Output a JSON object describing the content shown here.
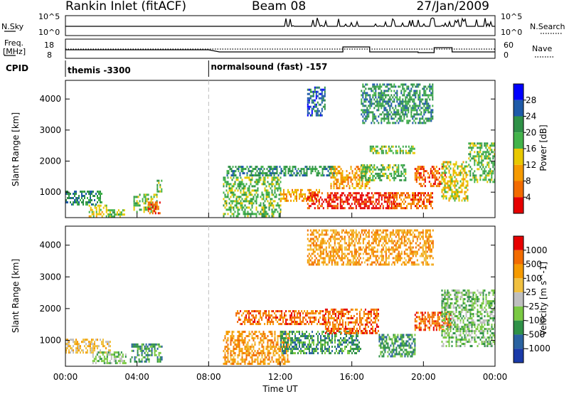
{
  "header": {
    "station": "Rankin Inlet (fitACF)",
    "beam": "Beam 08",
    "date": "27/Jan/2009"
  },
  "summary_panels": {
    "nsky_label": "N.Sky",
    "nsky_ticks": [
      "10^5",
      "10^0"
    ],
    "nsearch_label": "N.Search",
    "nsearch_ticks": [
      "10^5",
      "10^0"
    ],
    "freq_label_1": "Freq.",
    "freq_label_2": "[MHz]",
    "freq_ticks": [
      "18",
      "8"
    ],
    "nave_label": "Nave",
    "nave_ticks": [
      "60",
      "0"
    ],
    "cpid_label": "CPID",
    "cpid_segments": [
      {
        "name": "themis -3300",
        "start_hour": 0,
        "end_hour": 8.0
      },
      {
        "name": "normalsound (fast) -157",
        "start_hour": 8.0,
        "end_hour": 24
      }
    ]
  },
  "time_axis": {
    "label": "Time UT",
    "ticks": [
      "00:00",
      "04:00",
      "08:00",
      "12:00",
      "16:00",
      "20:00",
      "00:00"
    ]
  },
  "power_panel": {
    "ylabel": "Slant Range [km]",
    "yticks": [
      "1000",
      "2000",
      "3000",
      "4000"
    ],
    "colorbar_label": "Power [dB]",
    "colorbar_ticks": [
      "4",
      "8",
      "12",
      "16",
      "20",
      "24",
      "28"
    ],
    "colors": [
      "#0000ff",
      "#1e5aa8",
      "#2f9147",
      "#43b34a",
      "#e8c800",
      "#f59a00",
      "#f26b00",
      "#e60000"
    ]
  },
  "velocity_panel": {
    "ylabel": "Slant Range [km]",
    "yticks": [
      "1000",
      "2000",
      "3000",
      "4000"
    ],
    "colorbar_label": "Velocity [m s^-1]",
    "colorbar_ticks": [
      "1000",
      "500",
      "100",
      "25",
      "-25",
      "-100",
      "-500",
      "-1000"
    ],
    "colors": [
      "#1a3aa8",
      "#2a62a0",
      "#2f9147",
      "#7ac943",
      "#bfbfbf",
      "#f0c040",
      "#f59a00",
      "#f26b00",
      "#e60000"
    ]
  },
  "chart_data": {
    "type": "heatmap",
    "x_range_hours": [
      0,
      24
    ],
    "y_range_km": [
      180,
      4600
    ],
    "power_regions": [
      {
        "t0": 0.0,
        "t1": 2.0,
        "r0": 600,
        "r1": 1050,
        "level": 2
      },
      {
        "t0": 1.3,
        "t1": 2.4,
        "r0": 250,
        "r1": 600,
        "level": 4
      },
      {
        "t0": 2.3,
        "t1": 3.3,
        "r0": 220,
        "r1": 450,
        "level": 3
      },
      {
        "t0": 3.8,
        "t1": 5.1,
        "r0": 400,
        "r1": 950,
        "level": 3
      },
      {
        "t0": 4.6,
        "t1": 5.3,
        "r0": 300,
        "r1": 700,
        "level": 6
      },
      {
        "t0": 5.1,
        "t1": 5.4,
        "r0": 1000,
        "r1": 1400,
        "level": 3
      },
      {
        "t0": 9.0,
        "t1": 15.0,
        "r0": 1550,
        "r1": 1850,
        "level": 2
      },
      {
        "t0": 8.8,
        "t1": 12.0,
        "r0": 250,
        "r1": 1500,
        "level": 3
      },
      {
        "t0": 12.0,
        "t1": 14.2,
        "r0": 700,
        "r1": 1100,
        "level": 5
      },
      {
        "t0": 13.5,
        "t1": 18.5,
        "r0": 500,
        "r1": 1000,
        "level": 7
      },
      {
        "t0": 14.8,
        "t1": 17.0,
        "r0": 1100,
        "r1": 1850,
        "level": 5
      },
      {
        "t0": 16.5,
        "t1": 19.0,
        "r0": 1400,
        "r1": 1900,
        "level": 3
      },
      {
        "t0": 17.0,
        "t1": 19.5,
        "r0": 2250,
        "r1": 2500,
        "level": 3
      },
      {
        "t0": 18.0,
        "t1": 20.5,
        "r0": 500,
        "r1": 1000,
        "level": 6
      },
      {
        "t0": 19.5,
        "t1": 21.2,
        "r0": 1200,
        "r1": 1850,
        "level": 6
      },
      {
        "t0": 21.0,
        "t1": 22.5,
        "r0": 700,
        "r1": 2000,
        "level": 4
      },
      {
        "t0": 22.5,
        "t1": 24.0,
        "r0": 1300,
        "r1": 2600,
        "level": 3
      },
      {
        "t0": 13.5,
        "t1": 14.5,
        "r0": 3500,
        "r1": 4400,
        "level": 1
      },
      {
        "t0": 16.5,
        "t1": 20.5,
        "r0": 3200,
        "r1": 4500,
        "level": 2
      }
    ],
    "velocity_regions": [
      {
        "t0": 0.0,
        "t1": 2.5,
        "r0": 600,
        "r1": 1050,
        "level": 5
      },
      {
        "t0": 1.5,
        "t1": 3.4,
        "r0": 250,
        "r1": 650,
        "level": 3
      },
      {
        "t0": 3.6,
        "t1": 5.4,
        "r0": 300,
        "r1": 900,
        "level": 2
      },
      {
        "t0": 9.5,
        "t1": 14.5,
        "r0": 1500,
        "r1": 1950,
        "level": 7
      },
      {
        "t0": 8.8,
        "t1": 12.5,
        "r0": 250,
        "r1": 1300,
        "level": 6
      },
      {
        "t0": 12.0,
        "t1": 16.5,
        "r0": 600,
        "r1": 1300,
        "level": 2
      },
      {
        "t0": 14.5,
        "t1": 17.5,
        "r0": 1200,
        "r1": 2000,
        "level": 7
      },
      {
        "t0": 17.5,
        "t1": 19.5,
        "r0": 500,
        "r1": 1200,
        "level": 2
      },
      {
        "t0": 19.5,
        "t1": 21.5,
        "r0": 1300,
        "r1": 1900,
        "level": 7
      },
      {
        "t0": 21.0,
        "t1": 24.0,
        "r0": 800,
        "r1": 2600,
        "level": 3
      },
      {
        "t0": 13.5,
        "t1": 20.5,
        "r0": 3400,
        "r1": 4500,
        "level": 6
      }
    ]
  }
}
